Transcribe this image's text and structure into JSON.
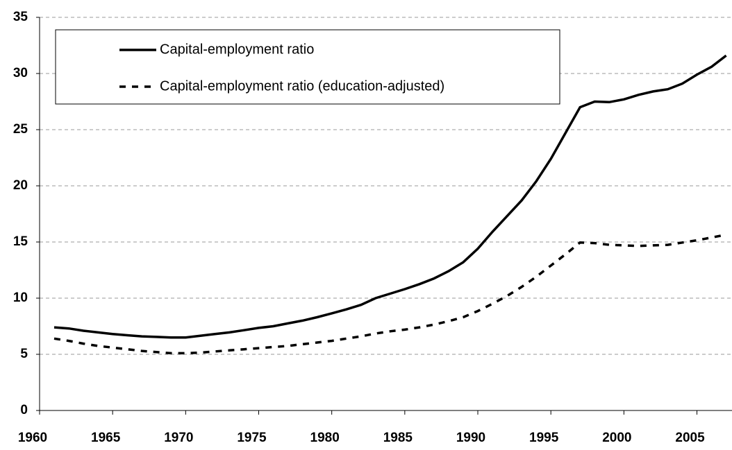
{
  "chart_data": {
    "type": "line",
    "x": [
      1961,
      1962,
      1963,
      1964,
      1965,
      1966,
      1967,
      1968,
      1969,
      1970,
      1971,
      1972,
      1973,
      1974,
      1975,
      1976,
      1977,
      1978,
      1979,
      1980,
      1981,
      1982,
      1983,
      1984,
      1985,
      1986,
      1987,
      1988,
      1989,
      1990,
      1991,
      1992,
      1993,
      1994,
      1995,
      1996,
      1997,
      1998,
      1999,
      2000,
      2001,
      2002,
      2003,
      2004,
      2005,
      2006,
      2007
    ],
    "series": [
      {
        "name": "Capital-employment ratio",
        "color": "#000000",
        "line_style": "solid",
        "values": [
          7.4,
          7.3,
          7.1,
          6.95,
          6.8,
          6.7,
          6.6,
          6.55,
          6.5,
          6.5,
          6.65,
          6.8,
          6.95,
          7.15,
          7.35,
          7.5,
          7.75,
          8.0,
          8.3,
          8.65,
          9.0,
          9.4,
          10.0,
          10.4,
          10.8,
          11.25,
          11.75,
          12.4,
          13.2,
          14.4,
          15.9,
          17.3,
          18.7,
          20.4,
          22.4,
          24.7,
          27.0,
          27.5,
          27.45,
          27.7,
          28.1,
          28.4,
          28.6,
          29.1,
          29.9,
          30.6,
          31.6
        ]
      },
      {
        "name": "Capital-employment ratio (education-adjusted)",
        "color": "#000000",
        "line_style": "dashed",
        "values": [
          6.4,
          6.2,
          5.95,
          5.75,
          5.6,
          5.45,
          5.3,
          5.2,
          5.1,
          5.1,
          5.15,
          5.25,
          5.35,
          5.45,
          5.55,
          5.65,
          5.75,
          5.9,
          6.05,
          6.2,
          6.4,
          6.6,
          6.85,
          7.05,
          7.2,
          7.4,
          7.65,
          7.95,
          8.3,
          8.85,
          9.5,
          10.2,
          11.0,
          11.9,
          12.9,
          13.9,
          14.95,
          14.9,
          14.75,
          14.7,
          14.65,
          14.7,
          14.75,
          14.95,
          15.15,
          15.4,
          15.65
        ]
      }
    ],
    "xlim": [
      1960,
      2007.4
    ],
    "xticks": [
      1960,
      1965,
      1970,
      1975,
      1980,
      1985,
      1990,
      1995,
      2000,
      2005
    ],
    "ylim": [
      0,
      35
    ],
    "yticks": [
      0,
      5,
      10,
      15,
      20,
      25,
      30,
      35
    ],
    "grid": true,
    "legend": "top-left"
  }
}
